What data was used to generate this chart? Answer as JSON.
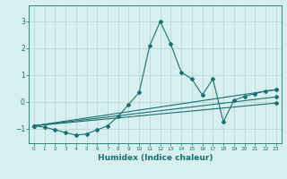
{
  "title": "",
  "xlabel": "Humidex (Indice chaleur)",
  "bg_color": "#d8efef",
  "grid_color": "#b8d8d8",
  "line_color": "#1a7070",
  "xlim": [
    -0.5,
    23.5
  ],
  "ylim": [
    -1.55,
    3.6
  ],
  "yticks": [
    -1,
    0,
    1,
    2,
    3
  ],
  "xticks": [
    0,
    1,
    2,
    3,
    4,
    5,
    6,
    7,
    8,
    9,
    10,
    11,
    12,
    13,
    14,
    15,
    16,
    17,
    18,
    19,
    20,
    21,
    22,
    23
  ],
  "lines": [
    {
      "x": [
        0,
        1,
        2,
        3,
        4,
        5,
        6,
        7,
        8,
        9,
        10,
        11,
        12,
        13,
        14,
        15,
        16,
        17,
        18,
        19,
        20,
        21,
        22,
        23
      ],
      "y": [
        -0.9,
        -0.95,
        -1.05,
        -1.15,
        -1.25,
        -1.2,
        -1.05,
        -0.9,
        -0.55,
        -0.1,
        0.35,
        2.1,
        3.0,
        2.15,
        1.1,
        0.85,
        0.25,
        0.85,
        -0.75,
        0.05,
        0.2,
        0.3,
        0.4,
        0.45
      ]
    },
    {
      "x": [
        0,
        23
      ],
      "y": [
        -0.9,
        0.45
      ]
    },
    {
      "x": [
        0,
        23
      ],
      "y": [
        -0.9,
        -0.05
      ]
    },
    {
      "x": [
        0,
        23
      ],
      "y": [
        -0.9,
        0.18
      ]
    }
  ]
}
